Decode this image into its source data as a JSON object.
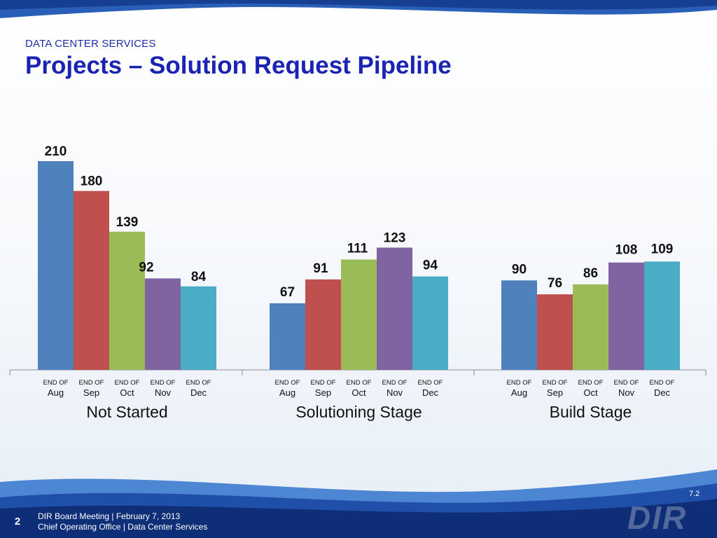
{
  "header": {
    "section": "DATA CENTER SERVICES",
    "title": "Projects – Solution Request Pipeline"
  },
  "chart_data": {
    "type": "bar",
    "title": "Projects – Solution Request Pipeline",
    "bar_prefix": "END OF",
    "categories": [
      "Aug",
      "Sep",
      "Oct",
      "Nov",
      "Dec"
    ],
    "colors": [
      "#4f81bd",
      "#c0504d",
      "#9bbb59",
      "#8064a2",
      "#4bacc6"
    ],
    "groups": [
      {
        "name": "Not Started",
        "values": [
          210,
          180,
          139,
          92,
          84
        ]
      },
      {
        "name": "Solutioning Stage",
        "values": [
          67,
          91,
          111,
          123,
          94
        ]
      },
      {
        "name": "Build Stage",
        "values": [
          90,
          76,
          86,
          108,
          109
        ]
      }
    ],
    "ylim": [
      0,
      210
    ],
    "grid": false,
    "legend": "none"
  },
  "footer": {
    "page_number": "2",
    "line1": "DIR Board Meeting | February 7, 2013",
    "line2": "Chief Operating Office | Data Center Services",
    "slide_code": "7.2",
    "logo_text": "DIR"
  }
}
